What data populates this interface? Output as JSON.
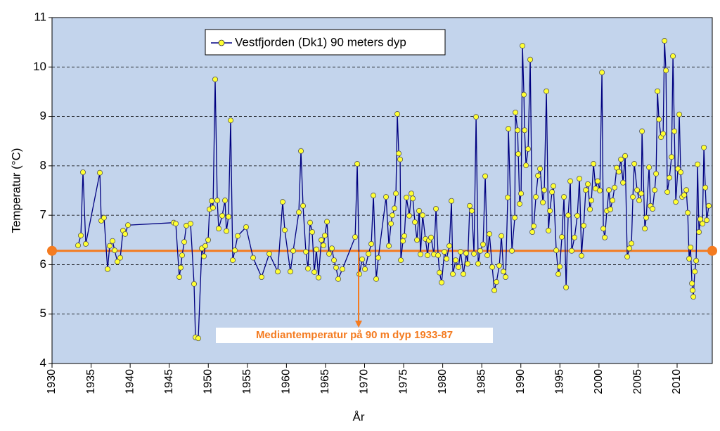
{
  "chart_data": {
    "type": "line",
    "xlabel": "År",
    "ylabel": "Temperatur (°C)",
    "xlim": [
      1930,
      2014.5
    ],
    "ylim": [
      4,
      11
    ],
    "xticks": [
      1930,
      1935,
      1940,
      1945,
      1950,
      1955,
      1960,
      1965,
      1970,
      1975,
      1980,
      1985,
      1990,
      1995,
      2000,
      2005,
      2010
    ],
    "yticks": [
      4,
      5,
      6,
      7,
      8,
      9,
      10,
      11
    ],
    "grid": true,
    "reference_line": {
      "value": 6.28,
      "label": "Mediantemperatur  på 90 m dyp 1933-87",
      "color": "#f47b20"
    },
    "x": [
      1933.33,
      1933.69,
      1933.96,
      1934.32,
      1936.12,
      1936.3,
      1936.66,
      1937.11,
      1937.38,
      1937.74,
      1938.01,
      1938.37,
      1938.73,
      1939.09,
      1939.36,
      1939.72,
      1945.57,
      1945.84,
      1946.29,
      1946.47,
      1946.65,
      1946.92,
      1947.19,
      1947.73,
      1948.18,
      1948.36,
      1948.72,
      1949.17,
      1949.44,
      1949.62,
      1949.98,
      1950.16,
      1950.43,
      1950.61,
      1950.88,
      1951.15,
      1951.33,
      1951.78,
      1952.14,
      1952.32,
      1952.59,
      1952.86,
      1953.13,
      1953.4,
      1953.76,
      1954.84,
      1955.74,
      1956.82,
      1957.81,
      1958.89,
      1959.52,
      1959.79,
      1960.51,
      1960.87,
      1961.59,
      1961.86,
      1962.13,
      1962.49,
      1962.76,
      1963.03,
      1963.3,
      1963.57,
      1963.84,
      1964.11,
      1964.47,
      1964.74,
      1964.92,
      1965.19,
      1965.46,
      1965.82,
      1966.09,
      1966.36,
      1966.63,
      1967.17,
      1968.79,
      1969.06,
      1969.33,
      1969.69,
      1970.05,
      1970.5,
      1970.86,
      1971.13,
      1971.49,
      1971.76,
      1972.75,
      1973.11,
      1973.38,
      1973.56,
      1973.83,
      1974.01,
      1974.19,
      1974.37,
      1974.55,
      1974.64,
      1974.91,
      1975.09,
      1975.36,
      1975.72,
      1975.99,
      1976.17,
      1976.44,
      1976.71,
      1976.98,
      1977.16,
      1977.43,
      1977.79,
      1978.06,
      1978.24,
      1978.51,
      1978.87,
      1979.14,
      1979.41,
      1979.59,
      1979.86,
      1980.22,
      1980.49,
      1980.85,
      1981.12,
      1981.3,
      1981.66,
      1982.02,
      1982.29,
      1982.65,
      1983.01,
      1983.19,
      1983.46,
      1983.73,
      1984.0,
      1984.27,
      1984.54,
      1984.81,
      1985.17,
      1985.44,
      1985.71,
      1985.98,
      1986.34,
      1986.61,
      1986.88,
      1987.24,
      1987.51,
      1987.78,
      1988.05,
      1988.32,
      1988.41,
      1988.86,
      1989.22,
      1989.31,
      1989.58,
      1989.67,
      1989.85,
      1990.03,
      1990.21,
      1990.39,
      1990.48,
      1990.66,
      1990.93,
      1991.2,
      1991.47,
      1991.65,
      1991.92,
      1992.19,
      1992.46,
      1992.82,
      1993.0,
      1993.27,
      1993.54,
      1993.72,
      1993.99,
      1994.17,
      1994.53,
      1994.8,
      1994.98,
      1995.25,
      1995.52,
      1995.79,
      1996.06,
      1996.33,
      1996.51,
      1996.87,
      1997.23,
      1997.5,
      1997.77,
      1998.04,
      1998.31,
      1998.58,
      1998.85,
      1999.03,
      1999.3,
      1999.57,
      1999.84,
      2000.11,
      2000.38,
      2000.56,
      2000.74,
      2001.01,
      2001.28,
      2001.46,
      2001.73,
      2002.0,
      2002.27,
      2002.54,
      2002.81,
      2003.08,
      2003.35,
      2003.62,
      2003.89,
      2004.16,
      2004.34,
      2004.52,
      2004.88,
      2005.15,
      2005.42,
      2005.51,
      2005.87,
      2006.05,
      2006.41,
      2006.59,
      2006.86,
      2007.13,
      2007.31,
      2007.49,
      2007.67,
      2007.94,
      2008.21,
      2008.39,
      2008.57,
      2008.75,
      2009.02,
      2009.29,
      2009.47,
      2009.65,
      2009.83,
      2010.1,
      2010.28,
      2010.46,
      2010.64,
      2010.91,
      2011.18,
      2011.36,
      2011.54,
      2011.72,
      2011.9,
      2011.99,
      2012.08,
      2012.26,
      2012.44,
      2012.62,
      2012.8,
      2012.98,
      2013.25,
      2013.43,
      2013.61,
      2013.79,
      2014.06
    ],
    "series": [
      {
        "name": "Vestfjorden (Dk1) 90 meters dyp",
        "color": "#000080",
        "marker_color": "#ffff33",
        "values": [
          6.39,
          6.59,
          7.87,
          6.42,
          7.86,
          6.89,
          6.95,
          5.91,
          6.38,
          6.48,
          6.29,
          6.06,
          6.14,
          6.69,
          6.62,
          6.8,
          6.85,
          6.83,
          5.75,
          5.94,
          6.19,
          6.46,
          6.79,
          6.83,
          5.61,
          4.53,
          4.51,
          6.33,
          6.17,
          6.38,
          6.5,
          7.12,
          7.29,
          7.15,
          9.75,
          7.3,
          6.73,
          6.99,
          7.3,
          6.68,
          6.97,
          8.92,
          6.09,
          6.29,
          6.58,
          6.76,
          6.14,
          5.75,
          6.22,
          5.86,
          7.27,
          6.7,
          5.86,
          6.28,
          7.06,
          8.3,
          7.19,
          6.26,
          5.92,
          6.85,
          6.66,
          5.85,
          6.31,
          5.74,
          6.5,
          6.39,
          6.59,
          6.87,
          6.22,
          6.33,
          6.09,
          5.94,
          5.71,
          5.91,
          6.56,
          8.04,
          5.81,
          6.11,
          5.91,
          6.22,
          6.42,
          7.4,
          5.71,
          6.14,
          7.37,
          6.38,
          6.83,
          7.0,
          7.14,
          7.44,
          9.05,
          8.25,
          8.13,
          6.09,
          6.48,
          6.58,
          7.36,
          6.99,
          7.44,
          7.34,
          6.86,
          6.5,
          7.09,
          6.21,
          7.0,
          6.52,
          6.19,
          6.49,
          6.55,
          6.21,
          7.13,
          6.19,
          5.84,
          5.64,
          6.26,
          6.12,
          6.38,
          7.29,
          5.81,
          6.09,
          5.95,
          6.26,
          5.81,
          6.23,
          6.02,
          7.19,
          7.09,
          6.22,
          8.99,
          6.02,
          6.28,
          6.41,
          7.79,
          6.19,
          6.62,
          5.95,
          5.48,
          5.65,
          5.98,
          6.58,
          5.86,
          5.75,
          7.36,
          8.75,
          6.28,
          6.95,
          9.08,
          8.72,
          8.24,
          7.23,
          7.44,
          10.43,
          9.44,
          8.72,
          8.01,
          8.34,
          10.15,
          6.66,
          6.78,
          7.37,
          7.8,
          7.94,
          7.26,
          7.51,
          9.51,
          6.69,
          7.09,
          7.47,
          7.59,
          6.29,
          5.81,
          5.96,
          6.56,
          7.37,
          5.54,
          7.0,
          7.69,
          6.28,
          6.55,
          6.99,
          7.74,
          6.18,
          6.79,
          7.51,
          7.63,
          7.12,
          7.3,
          8.04,
          7.54,
          7.69,
          7.5,
          9.89,
          6.73,
          6.55,
          7.09,
          7.51,
          7.12,
          7.3,
          7.56,
          7.96,
          7.88,
          8.13,
          7.66,
          8.2,
          6.16,
          6.33,
          6.43,
          7.37,
          8.04,
          7.51,
          7.3,
          7.44,
          8.7,
          6.73,
          6.95,
          7.97,
          7.19,
          7.13,
          7.51,
          7.84,
          9.51,
          8.94,
          8.58,
          8.65,
          10.53,
          9.93,
          7.47,
          7.76,
          8.18,
          10.22,
          8.7,
          7.27,
          7.94,
          9.04,
          7.87,
          7.37,
          7.41,
          7.51,
          7.05,
          6.12,
          6.35,
          5.62,
          5.48,
          5.35,
          5.86,
          6.08,
          8.03,
          6.66,
          6.92,
          6.83,
          8.37,
          7.56,
          6.9,
          7.19
        ]
      }
    ]
  }
}
